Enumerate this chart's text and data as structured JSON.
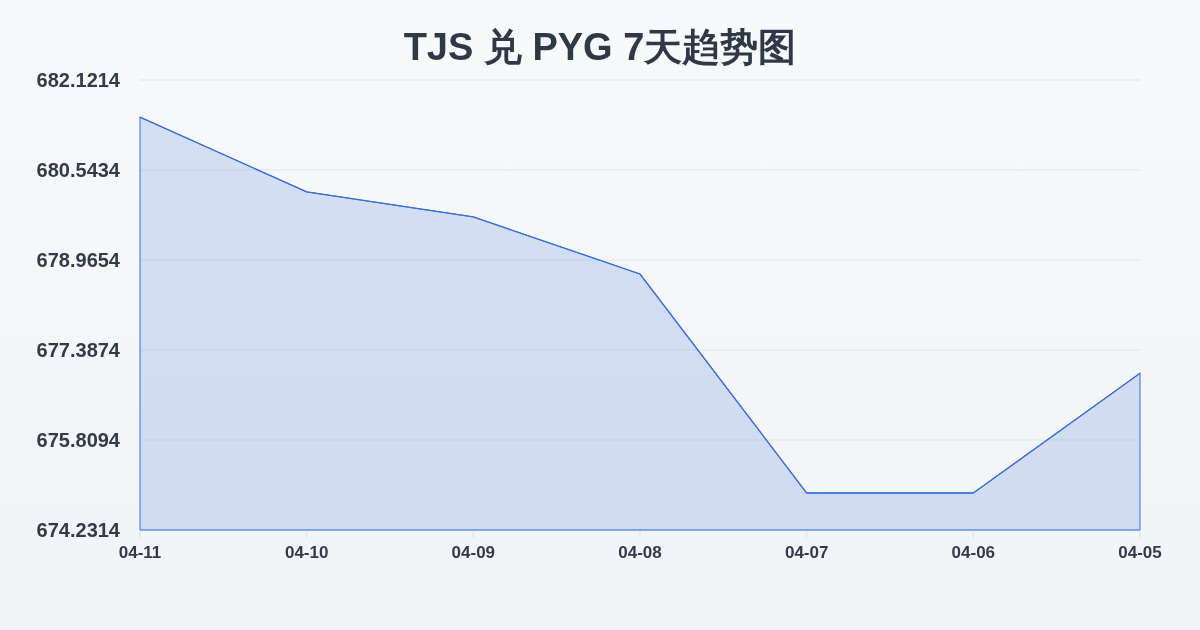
{
  "chart_data": {
    "type": "area",
    "title": "TJS 兑 PYG 7天趋势图",
    "categories": [
      "04-11",
      "04-10",
      "04-09",
      "04-08",
      "04-07",
      "04-06",
      "04-05"
    ],
    "series": [
      {
        "color": "#3a6fd8",
        "values": [
          681.47,
          680.16,
          679.72,
          678.72,
          674.88,
          674.88,
          676.98
        ]
      }
    ],
    "ylim": [
      674.2314,
      682.1214
    ],
    "yticks": [
      674.2314,
      675.8094,
      677.3874,
      678.9654,
      680.5434,
      682.1214
    ],
    "grid": "y"
  }
}
